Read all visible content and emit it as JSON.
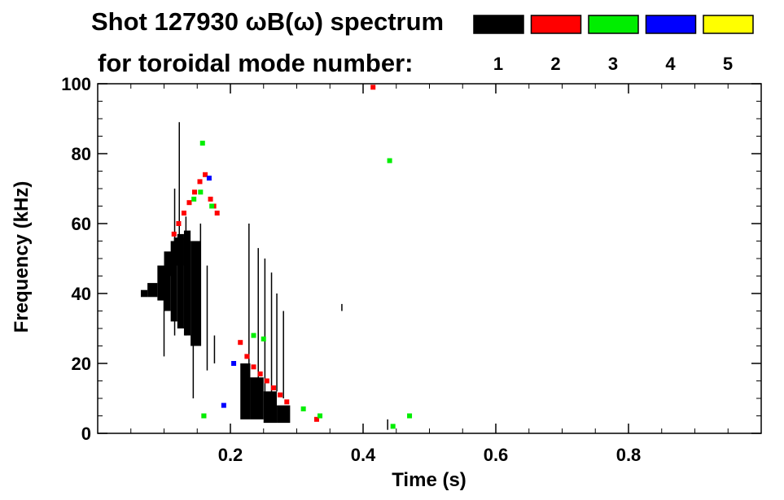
{
  "chart_data": {
    "type": "heatmap",
    "title": "Shot 127930 ωB(ω) spectrum",
    "subtitle": "for toroidal mode number:",
    "xlabel": "Time (s)",
    "ylabel": "Frequency (kHz)",
    "xlim": [
      0,
      1.0
    ],
    "ylim": [
      0,
      100
    ],
    "xticks": [
      0.2,
      0.4,
      0.6,
      0.8
    ],
    "xtick_labels": [
      "0.2",
      "0.4",
      "0.6",
      "0.8"
    ],
    "yticks": [
      0,
      20,
      40,
      60,
      80,
      100
    ],
    "ytick_labels": [
      "0",
      "20",
      "40",
      "60",
      "80",
      "100"
    ],
    "grid": false,
    "legend": {
      "placement": "top-right",
      "entries": [
        {
          "label": "1",
          "color": "#000000"
        },
        {
          "label": "2",
          "color": "#ff0000"
        },
        {
          "label": "3",
          "color": "#00ee00"
        },
        {
          "label": "4",
          "color": "#0000ff"
        },
        {
          "label": "5",
          "color": "#ffff00"
        }
      ]
    },
    "series": [
      {
        "mode": "1",
        "color": "#000000",
        "regions": [
          {
            "t": [
              0.065,
              0.075
            ],
            "f": [
              39,
              41
            ]
          },
          {
            "t": [
              0.075,
              0.09
            ],
            "f": [
              39,
              43
            ]
          },
          {
            "t": [
              0.09,
              0.1
            ],
            "f": [
              38,
              48
            ]
          },
          {
            "t": [
              0.1,
              0.11
            ],
            "f": [
              35,
              52
            ]
          },
          {
            "t": [
              0.11,
              0.12
            ],
            "f": [
              32,
              55
            ]
          },
          {
            "t": [
              0.12,
              0.13
            ],
            "f": [
              30,
              57
            ]
          },
          {
            "t": [
              0.13,
              0.14
            ],
            "f": [
              28,
              58
            ]
          },
          {
            "t": [
              0.14,
              0.155
            ],
            "f": [
              25,
              55
            ]
          },
          {
            "t": [
              0.1,
              0.115
            ],
            "f": [
              45,
              52
            ]
          },
          {
            "t": [
              0.115,
              0.13
            ],
            "f": [
              48,
              56
            ]
          },
          {
            "t": [
              0.215,
              0.23
            ],
            "f": [
              4,
              20
            ]
          },
          {
            "t": [
              0.23,
              0.25
            ],
            "f": [
              4,
              16
            ]
          },
          {
            "t": [
              0.25,
              0.27
            ],
            "f": [
              3,
              12
            ]
          },
          {
            "t": [
              0.27,
              0.29
            ],
            "f": [
              3,
              8
            ]
          }
        ],
        "lines": [
          {
            "t": 0.1,
            "f": [
              22,
              45
            ]
          },
          {
            "t": 0.116,
            "f": [
              28,
              70
            ]
          },
          {
            "t": 0.123,
            "f": [
              35,
              89
            ]
          },
          {
            "t": 0.133,
            "f": [
              28,
              62
            ]
          },
          {
            "t": 0.144,
            "f": [
              10,
              50
            ]
          },
          {
            "t": 0.155,
            "f": [
              25,
              60
            ]
          },
          {
            "t": 0.165,
            "f": [
              18,
              48
            ]
          },
          {
            "t": 0.176,
            "f": [
              20,
              28
            ]
          },
          {
            "t": 0.228,
            "f": [
              5,
              60
            ]
          },
          {
            "t": 0.242,
            "f": [
              8,
              53
            ]
          },
          {
            "t": 0.252,
            "f": [
              6,
              50
            ]
          },
          {
            "t": 0.262,
            "f": [
              10,
              46
            ]
          },
          {
            "t": 0.27,
            "f": [
              12,
              40
            ]
          },
          {
            "t": 0.28,
            "f": [
              10,
              35
            ]
          },
          {
            "t": 0.368,
            "f": [
              35,
              37
            ]
          },
          {
            "t": 0.437,
            "f": [
              1,
              4
            ]
          }
        ]
      },
      {
        "mode": "2",
        "color": "#ff0000",
        "points": [
          [
            0.115,
            57
          ],
          [
            0.122,
            60
          ],
          [
            0.13,
            63
          ],
          [
            0.138,
            66
          ],
          [
            0.146,
            69
          ],
          [
            0.154,
            72
          ],
          [
            0.162,
            74
          ],
          [
            0.17,
            67
          ],
          [
            0.175,
            65
          ],
          [
            0.18,
            63
          ],
          [
            0.215,
            26
          ],
          [
            0.225,
            22
          ],
          [
            0.235,
            19
          ],
          [
            0.245,
            17
          ],
          [
            0.255,
            15
          ],
          [
            0.265,
            13
          ],
          [
            0.275,
            11
          ],
          [
            0.285,
            9
          ],
          [
            0.16,
            5
          ],
          [
            0.33,
            4
          ],
          [
            0.415,
            99
          ]
        ]
      },
      {
        "mode": "3",
        "color": "#00ee00",
        "points": [
          [
            0.145,
            67
          ],
          [
            0.155,
            69
          ],
          [
            0.172,
            65
          ],
          [
            0.158,
            83
          ],
          [
            0.16,
            5
          ],
          [
            0.235,
            28
          ],
          [
            0.25,
            27
          ],
          [
            0.31,
            7
          ],
          [
            0.335,
            5
          ],
          [
            0.44,
            78
          ],
          [
            0.445,
            2
          ],
          [
            0.47,
            5
          ]
        ]
      },
      {
        "mode": "4",
        "color": "#0000ff",
        "points": [
          [
            0.168,
            73
          ],
          [
            0.19,
            8
          ],
          [
            0.205,
            20
          ]
        ]
      },
      {
        "mode": "5",
        "color": "#ffff00",
        "points": []
      }
    ]
  }
}
